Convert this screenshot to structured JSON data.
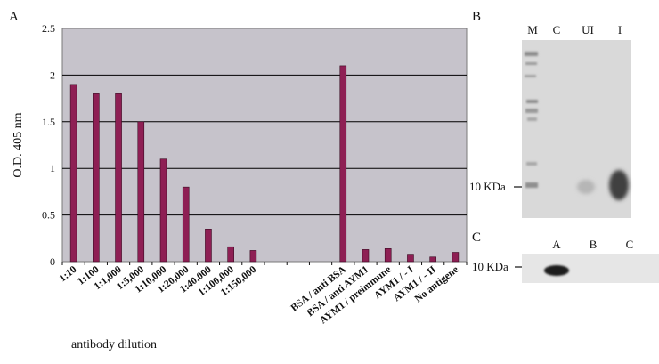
{
  "panels": {
    "a_letter": "A",
    "b_letter": "B",
    "c_letter": "C"
  },
  "chart_data": {
    "type": "bar",
    "ylabel": "O.D. 405 nm",
    "xlabel": "antibody dilution",
    "ylim": [
      0,
      2.5
    ],
    "yticks": [
      "0",
      "0.5",
      "1",
      "1.5",
      "2",
      "2.5"
    ],
    "grid": true,
    "categories": [
      "1:10",
      "1:100",
      "1:1,000",
      "1:5,000",
      "1:10,000",
      "1:20,000",
      "1:40,000",
      "1:100,000",
      "1:150,000",
      "",
      "",
      "",
      "BSA / anti BSA",
      "BSA / anti AYM1",
      "AYM1 / preimmune",
      "AYM1 / - I",
      "AYM1 / - II",
      "No antigene"
    ],
    "values": [
      1.9,
      1.8,
      1.8,
      1.5,
      1.1,
      0.8,
      0.35,
      0.16,
      0.12,
      null,
      null,
      null,
      2.1,
      0.13,
      0.14,
      0.08,
      0.05,
      0.1
    ],
    "colors": {
      "bar": "#8e1f54",
      "plot_bg": "#c6c3cb",
      "grid": "#000000"
    }
  },
  "blot_b": {
    "lanes": [
      "M",
      "C",
      "UI",
      "I"
    ],
    "marker": "10 KDa"
  },
  "blot_c": {
    "lanes": [
      "A",
      "B",
      "C"
    ],
    "marker": "10 KDa"
  }
}
